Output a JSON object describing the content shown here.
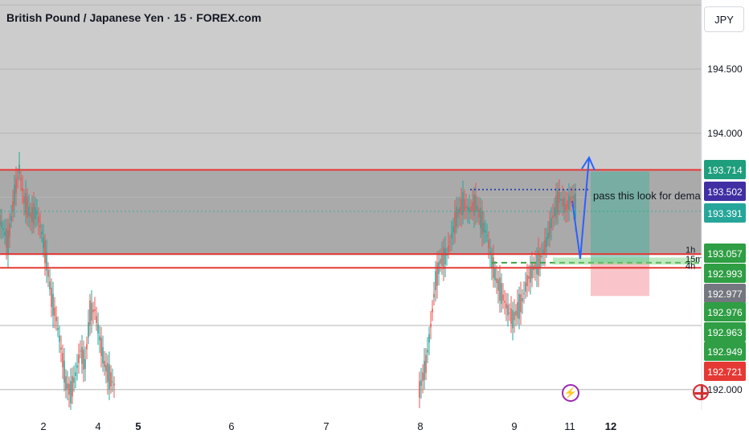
{
  "header": {
    "symbol_title": "British Pound / Japanese Yen · 15 · FOREX.com",
    "currency": "JPY"
  },
  "chart_data": {
    "type": "candlestick",
    "x_tick_labels": [
      "2",
      "4",
      "5",
      "6",
      "7",
      "8",
      "9",
      "11",
      "12"
    ],
    "x_tick_bold": [
      "5",
      "12"
    ],
    "y_tick_labels": [
      "194.500",
      "194.000",
      "192.000"
    ],
    "ylim": [
      191.9,
      195.3
    ],
    "grid": true,
    "zones": [
      {
        "name": "supply-zone",
        "from": 193.05,
        "to": 193.71,
        "color": "#8e8e8e"
      },
      {
        "name": "upper-shade",
        "from": 193.71,
        "to": 195.3,
        "color": "#c9c9c9"
      }
    ],
    "levels": [
      {
        "name": "supply-top",
        "value": 193.714,
        "color": "#e53935"
      },
      {
        "name": "supply-bottom",
        "value": 193.057,
        "color": "#e53935"
      },
      {
        "name": "demand-line",
        "value": 192.95,
        "color": "#e53935"
      },
      {
        "name": "blue-dotted-high",
        "value": 193.56,
        "color": "#3949ab",
        "style": "dotted"
      },
      {
        "name": "green-dotted-mid",
        "value": 193.39,
        "color": "#26a69a",
        "style": "dotted"
      },
      {
        "name": "green-dashed",
        "value": 192.99,
        "color": "#43a047",
        "style": "dashed"
      }
    ],
    "position": {
      "entry": 192.99,
      "target": 193.7,
      "stop": 192.73
    },
    "annotation": "pass this look for demand",
    "right_labels": [
      {
        "label": "1h",
        "value": 193.06
      },
      {
        "label": "15m",
        "value": 193.02
      },
      {
        "label": "4h",
        "value": 193.0
      }
    ],
    "price_tags": [
      {
        "value": "193.714",
        "bg": "#1e9e7c",
        "color": "#ffffff"
      },
      {
        "value": "193.502",
        "bg": "#3f2fa3",
        "color": "#ffffff"
      },
      {
        "value": "193.391",
        "bg": "#26a69a",
        "color": "#ffffff"
      },
      {
        "value": "193.057",
        "bg": "#2f9e44",
        "color": "#ffffff"
      },
      {
        "value": "192.993",
        "bg": "#2f9e44",
        "color": "#ffffff"
      },
      {
        "value": "192.977",
        "bg": "#757780",
        "color": "#ffffff"
      },
      {
        "value": "192.976",
        "bg": "#2f9e44",
        "color": "#ffffff"
      },
      {
        "value": "192.963",
        "bg": "#2f9e44",
        "color": "#ffffff"
      },
      {
        "value": "192.949",
        "bg": "#2f9e44",
        "color": "#ffffff"
      },
      {
        "value": "192.721",
        "bg": "#e53935",
        "color": "#ffffff"
      }
    ],
    "path_points": [
      [
        0,
        193.32
      ],
      [
        10,
        193.15
      ],
      [
        18,
        193.52
      ],
      [
        24,
        193.72
      ],
      [
        30,
        193.48
      ],
      [
        38,
        193.36
      ],
      [
        46,
        193.38
      ],
      [
        52,
        193.22
      ],
      [
        58,
        193.0
      ],
      [
        64,
        192.72
      ],
      [
        70,
        192.55
      ],
      [
        76,
        192.32
      ],
      [
        82,
        192.05
      ],
      [
        88,
        191.98
      ],
      [
        94,
        192.12
      ],
      [
        100,
        192.3
      ],
      [
        106,
        192.2
      ],
      [
        112,
        192.6
      ],
      [
        118,
        192.62
      ],
      [
        124,
        192.4
      ],
      [
        130,
        192.2
      ],
      [
        136,
        192.1
      ],
      [
        144,
        192.02
      ],
      [
        522,
        192.0
      ],
      [
        530,
        192.2
      ],
      [
        536,
        192.5
      ],
      [
        542,
        192.85
      ],
      [
        548,
        193.0
      ],
      [
        556,
        193.05
      ],
      [
        562,
        193.2
      ],
      [
        568,
        193.35
      ],
      [
        576,
        193.45
      ],
      [
        584,
        193.4
      ],
      [
        592,
        193.45
      ],
      [
        600,
        193.3
      ],
      [
        606,
        193.2
      ],
      [
        612,
        193.0
      ],
      [
        618,
        192.85
      ],
      [
        624,
        192.75
      ],
      [
        632,
        192.62
      ],
      [
        638,
        192.55
      ],
      [
        644,
        192.62
      ],
      [
        650,
        192.7
      ],
      [
        656,
        192.85
      ],
      [
        664,
        192.95
      ],
      [
        672,
        193.0
      ],
      [
        680,
        193.15
      ],
      [
        688,
        193.35
      ],
      [
        696,
        193.5
      ],
      [
        704,
        193.42
      ],
      [
        712,
        193.5
      ],
      [
        718,
        193.4
      ]
    ]
  }
}
